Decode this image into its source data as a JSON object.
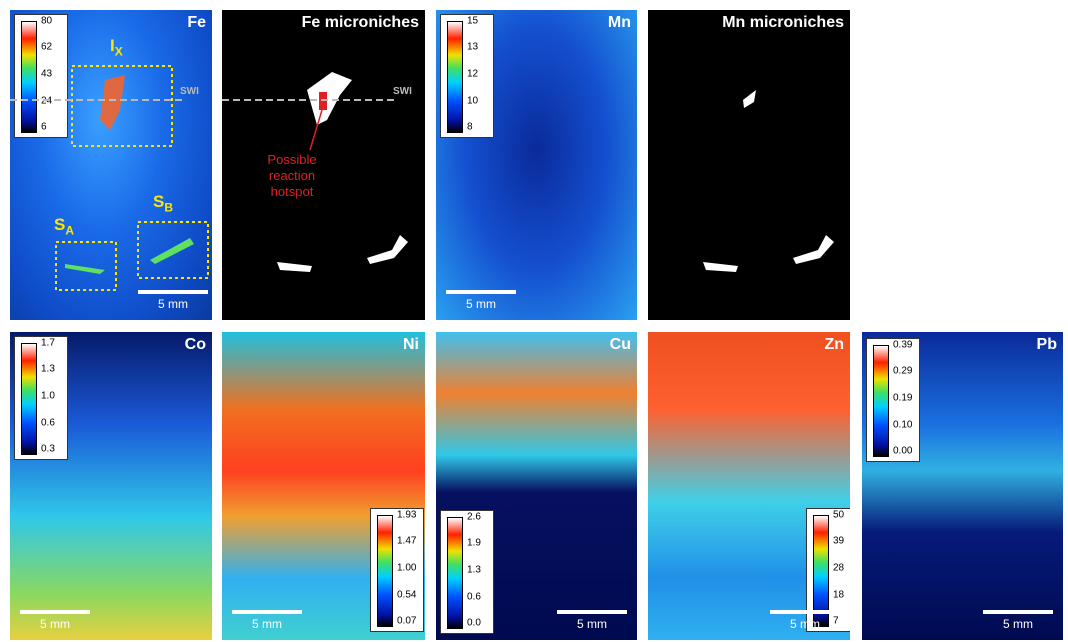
{
  "panels": [
    {
      "title": "Fe",
      "colorbar": [
        "80",
        "62",
        "43",
        "24",
        "6"
      ],
      "scale_bar": "5 mm",
      "swi": "SWI",
      "regions": [
        {
          "main": "I",
          "sub": "X"
        },
        {
          "main": "S",
          "sub": "A"
        },
        {
          "main": "S",
          "sub": "B"
        }
      ]
    },
    {
      "title": "Fe microniches",
      "swi": "SWI",
      "annotation": [
        "Possible",
        "reaction",
        "hotspot"
      ]
    },
    {
      "title": "Mn",
      "colorbar": [
        "15",
        "13",
        "12",
        "10",
        "8"
      ],
      "scale_bar": "5 mm"
    },
    {
      "title": "Mn microniches"
    },
    {
      "title": "Co",
      "colorbar": [
        "1.7",
        "1.3",
        "1.0",
        "0.6",
        "0.3"
      ],
      "scale_bar": "5 mm"
    },
    {
      "title": "Ni",
      "colorbar": [
        "1.93",
        "1.47",
        "1.00",
        "0.54",
        "0.07"
      ],
      "scale_bar": "5 mm"
    },
    {
      "title": "Cu",
      "colorbar": [
        "2.6",
        "1.9",
        "1.3",
        "0.6",
        "0.0"
      ],
      "scale_bar": "5 mm"
    },
    {
      "title": "Zn",
      "colorbar": [
        "50",
        "39",
        "28",
        "18",
        "7"
      ],
      "scale_bar": "5 mm"
    },
    {
      "title": "Pb",
      "colorbar": [
        "0.39",
        "0.29",
        "0.19",
        "0.10",
        "0.00"
      ],
      "scale_bar": "5 mm"
    }
  ]
}
